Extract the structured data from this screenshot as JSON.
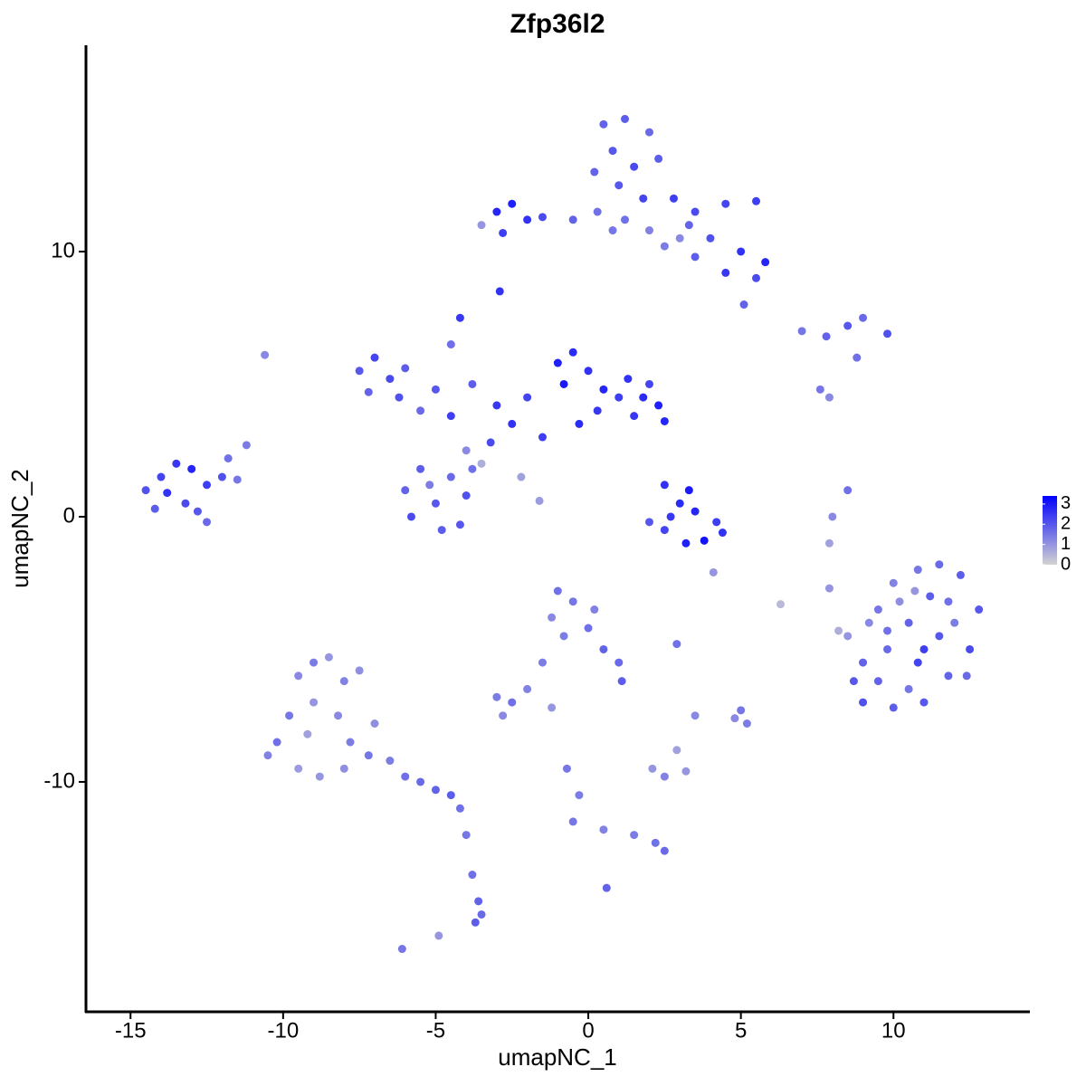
{
  "chart_data": {
    "type": "scatter",
    "title": "Zfp36l2",
    "x_label": "umapNC_1",
    "y_label": "umapNC_2",
    "xlim": [
      -16.46,
      14.47
    ],
    "xticks": [
      -15,
      -10,
      -5,
      0,
      5,
      10
    ],
    "ylim": [
      -18.67,
      17.78
    ],
    "yticks": [
      -10,
      0,
      10
    ],
    "colorscale": {
      "low": "#d3d3d3",
      "high": "#0000ff",
      "lim": [
        0,
        3.4
      ],
      "ticks": [
        0,
        1,
        2,
        3
      ]
    },
    "series": [
      {
        "x": [
          -14.5,
          -14.0,
          -13.5,
          -13.0,
          -12.5,
          -13.2,
          -14.2,
          -12.8,
          -12.0,
          -11.8,
          -11.5,
          -13.8,
          -12.5,
          -11.2,
          -10.6,
          0.5,
          1.2,
          2.0,
          0.8,
          1.5,
          0.2,
          2.3,
          1.0,
          1.8,
          1.2,
          0.8,
          2.8,
          3.5,
          4.5,
          5.5,
          4.0,
          5.0,
          5.8,
          4.5,
          3.0,
          3.5,
          2.5,
          -3.0,
          -2.5,
          -2.0,
          -2.8,
          -1.5,
          -0.5,
          0.3,
          -3.5,
          -2.9,
          3.3,
          2.0,
          5.5,
          5.1,
          -7.5,
          -7.0,
          -6.5,
          -6.0,
          -7.2,
          -6.2,
          -5.5,
          -5.0,
          -4.5,
          -4.2,
          -4.5,
          -3.8,
          -3.0,
          -2.5,
          -2.0,
          -1.5,
          -3.2,
          -1.0,
          -0.5,
          -0.8,
          0,
          0.5,
          0.3,
          -0.3,
          1.0,
          1.3,
          1.8,
          2.3,
          2.5,
          1.5,
          2.0,
          -6.0,
          -5.5,
          -5.0,
          -4.5,
          -4.0,
          -5.8,
          -4.8,
          -4.2,
          -3.8,
          -5.2,
          -4.0,
          -2.2,
          -1.6,
          -3.5,
          2.5,
          3.3,
          3.0,
          2.7,
          3.5,
          4.2,
          3.8,
          3.2,
          2.5,
          2.0,
          4.4,
          4.1,
          7.0,
          7.8,
          8.5,
          9.0,
          9.8,
          8.8,
          7.6,
          7.9,
          8.5,
          8.0,
          7.9,
          7.9,
          8.5,
          8.2,
          9.0,
          9.5,
          10.0,
          10.8,
          11.5,
          12.2,
          12.8,
          12.5,
          11.8,
          11.0,
          10.0,
          9.0,
          9.8,
          10.5,
          11.5,
          10.8,
          11.8,
          9.5,
          10.5,
          12.0,
          11.2,
          9.2,
          8.7,
          10.2,
          12.4,
          11.0,
          9.8,
          10.7,
          -9.5,
          -9.0,
          -8.5,
          -8.0,
          -7.5,
          -9.8,
          -9.0,
          -8.2,
          -7.8,
          -10.2,
          -9.5,
          -10.5,
          -8.8,
          -8.0,
          -7.2,
          -6.5,
          -6.0,
          -5.5,
          -5.0,
          -4.5,
          -4.2,
          -4.0,
          -3.8,
          -3.6,
          -3.5,
          -3.7,
          -6.1,
          -4.9,
          -9.2,
          -7.0,
          -1.0,
          -0.5,
          -1.2,
          -0.8,
          0,
          0.5,
          1.0,
          1.1,
          0.2,
          -1.5,
          -2.0,
          -2.5,
          -3.0,
          -2.8,
          -1.2,
          -0.7,
          -0.3,
          -0.5,
          0.5,
          1.5,
          2.2,
          2.5,
          0.6,
          2.1,
          2.9,
          2.5,
          3.2,
          3.5,
          2.9,
          5.0,
          4.8,
          5.2,
          6.3
        ],
        "values": [
          1.0,
          1.5,
          2.0,
          1.8,
          1.2,
          0.5,
          0.3,
          0.2,
          1.5,
          2.2,
          1.4,
          0.9,
          -0.2,
          2.7,
          6.1,
          14.8,
          15.0,
          14.5,
          13.8,
          13.2,
          13.0,
          13.5,
          12.5,
          12.0,
          11.2,
          10.8,
          12.0,
          11.5,
          11.8,
          11.9,
          10.5,
          10.0,
          9.6,
          9.2,
          10.5,
          9.8,
          10.2,
          11.5,
          11.8,
          11.2,
          10.7,
          11.3,
          11.2,
          11.5,
          11.0,
          8.5,
          11.0,
          10.8,
          9.0,
          8.0,
          5.5,
          6.0,
          5.2,
          5.6,
          4.7,
          4.5,
          4.0,
          4.8,
          3.8,
          7.5,
          6.5,
          5.0,
          4.2,
          3.5,
          4.5,
          3.0,
          2.8,
          5.8,
          6.2,
          5.0,
          5.5,
          4.8,
          4.0,
          3.5,
          4.5,
          5.2,
          4.5,
          4.2,
          3.6,
          3.8,
          5.0,
          1.0,
          1.8,
          0.5,
          1.5,
          0.8,
          0.0,
          -0.5,
          -0.3,
          1.8,
          1.2,
          2.5,
          1.5,
          0.6,
          2.0,
          1.2,
          1.0,
          0.5,
          0.0,
          0.2,
          -0.2,
          -0.9,
          -1.0,
          -0.5,
          -0.2,
          -0.6,
          -2.1,
          7.0,
          6.8,
          7.2,
          7.5,
          6.9,
          6.0,
          4.8,
          4.5,
          1.0,
          0.0,
          -1.0,
          -2.7,
          -4.5,
          -4.3,
          -5.5,
          -3.5,
          -2.5,
          -2.0,
          -1.8,
          -2.2,
          -3.5,
          -5.0,
          -6.0,
          -7.0,
          -7.2,
          -7.0,
          -5.0,
          -4.0,
          -4.5,
          -5.5,
          -3.2,
          -6.2,
          -6.5,
          -4.0,
          -3.0,
          -4.0,
          -6.2,
          -3.2,
          -6.0,
          -5.0,
          -4.3,
          -2.8,
          -6.0,
          -5.5,
          -5.3,
          -6.2,
          -5.8,
          -7.5,
          -7.0,
          -7.5,
          -8.5,
          -8.5,
          -9.5,
          -9.0,
          -9.8,
          -9.5,
          -9.0,
          -9.2,
          -9.8,
          -10.0,
          -10.3,
          -10.5,
          -11.0,
          -12.0,
          -13.5,
          -14.5,
          -15.0,
          -15.3,
          -16.3,
          -15.8,
          -8.2,
          -7.8,
          -2.8,
          -3.2,
          -3.8,
          -4.5,
          -4.2,
          -5.0,
          -5.5,
          -6.2,
          -3.5,
          -5.5,
          -6.5,
          -7.0,
          -6.8,
          -7.5,
          -7.2,
          -9.5,
          -10.5,
          -11.5,
          -11.8,
          -12.0,
          -12.3,
          -12.6,
          -14.0,
          -9.5,
          -8.8,
          -9.8,
          -9.6,
          -7.5,
          -4.8,
          -7.3,
          -7.6,
          -7.8,
          -3.3
        ],
        "expression": [
          2.1,
          2.3,
          2.5,
          2.8,
          2.4,
          2.2,
          1.9,
          2.0,
          2.1,
          1.6,
          1.5,
          2.6,
          1.7,
          1.4,
          1.2,
          1.8,
          1.9,
          1.7,
          2.0,
          2.2,
          1.8,
          1.9,
          2.0,
          2.3,
          1.6,
          1.5,
          2.4,
          2.2,
          2.3,
          2.4,
          2.1,
          2.6,
          2.8,
          2.5,
          1.2,
          1.9,
          1.4,
          2.8,
          2.9,
          2.6,
          2.4,
          2.2,
          1.8,
          1.6,
          1.0,
          2.6,
          1.8,
          1.3,
          2.2,
          1.8,
          2.0,
          2.3,
          2.2,
          1.9,
          1.8,
          2.1,
          1.7,
          2.0,
          2.4,
          2.5,
          1.6,
          1.9,
          2.5,
          2.6,
          2.3,
          2.4,
          2.2,
          2.9,
          2.7,
          3.0,
          2.6,
          2.8,
          2.5,
          2.7,
          2.4,
          2.6,
          2.7,
          2.9,
          2.8,
          2.5,
          2.3,
          1.8,
          1.9,
          2.0,
          1.7,
          2.1,
          2.2,
          1.9,
          2.0,
          1.6,
          1.4,
          1.2,
          0.8,
          0.9,
          0.6,
          2.6,
          3.0,
          2.7,
          2.5,
          2.8,
          2.4,
          3.1,
          2.9,
          2.3,
          2.0,
          2.6,
          1.0,
          1.5,
          1.8,
          2.0,
          1.7,
          2.1,
          1.6,
          1.5,
          1.2,
          1.6,
          1.2,
          0.8,
          1.0,
          1.0,
          0.6,
          1.8,
          1.5,
          1.3,
          1.5,
          1.7,
          1.9,
          2.0,
          2.2,
          1.8,
          2.0,
          1.9,
          2.1,
          1.7,
          1.8,
          2.0,
          2.3,
          1.6,
          1.8,
          1.5,
          1.4,
          1.9,
          1.2,
          2.0,
          1.1,
          1.7,
          2.4,
          1.6,
          1.0,
          1.2,
          1.4,
          1.0,
          1.3,
          1.1,
          1.5,
          1.0,
          1.2,
          1.4,
          1.6,
          0.9,
          1.3,
          1.0,
          1.1,
          1.5,
          1.4,
          1.6,
          1.7,
          1.8,
          1.9,
          1.6,
          1.5,
          1.6,
          1.8,
          1.7,
          1.9,
          1.5,
          1.0,
          0.8,
          1.1,
          1.6,
          1.5,
          1.2,
          1.4,
          1.6,
          1.8,
          1.7,
          1.9,
          1.3,
          1.4,
          1.3,
          1.6,
          1.4,
          1.2,
          1.0,
          1.5,
          1.4,
          1.5,
          1.3,
          1.4,
          1.6,
          1.7,
          1.8,
          1.0,
          0.8,
          1.3,
          1.0,
          1.2,
          1.6,
          1.5,
          1.2,
          1.4,
          0.4
        ]
      }
    ]
  }
}
